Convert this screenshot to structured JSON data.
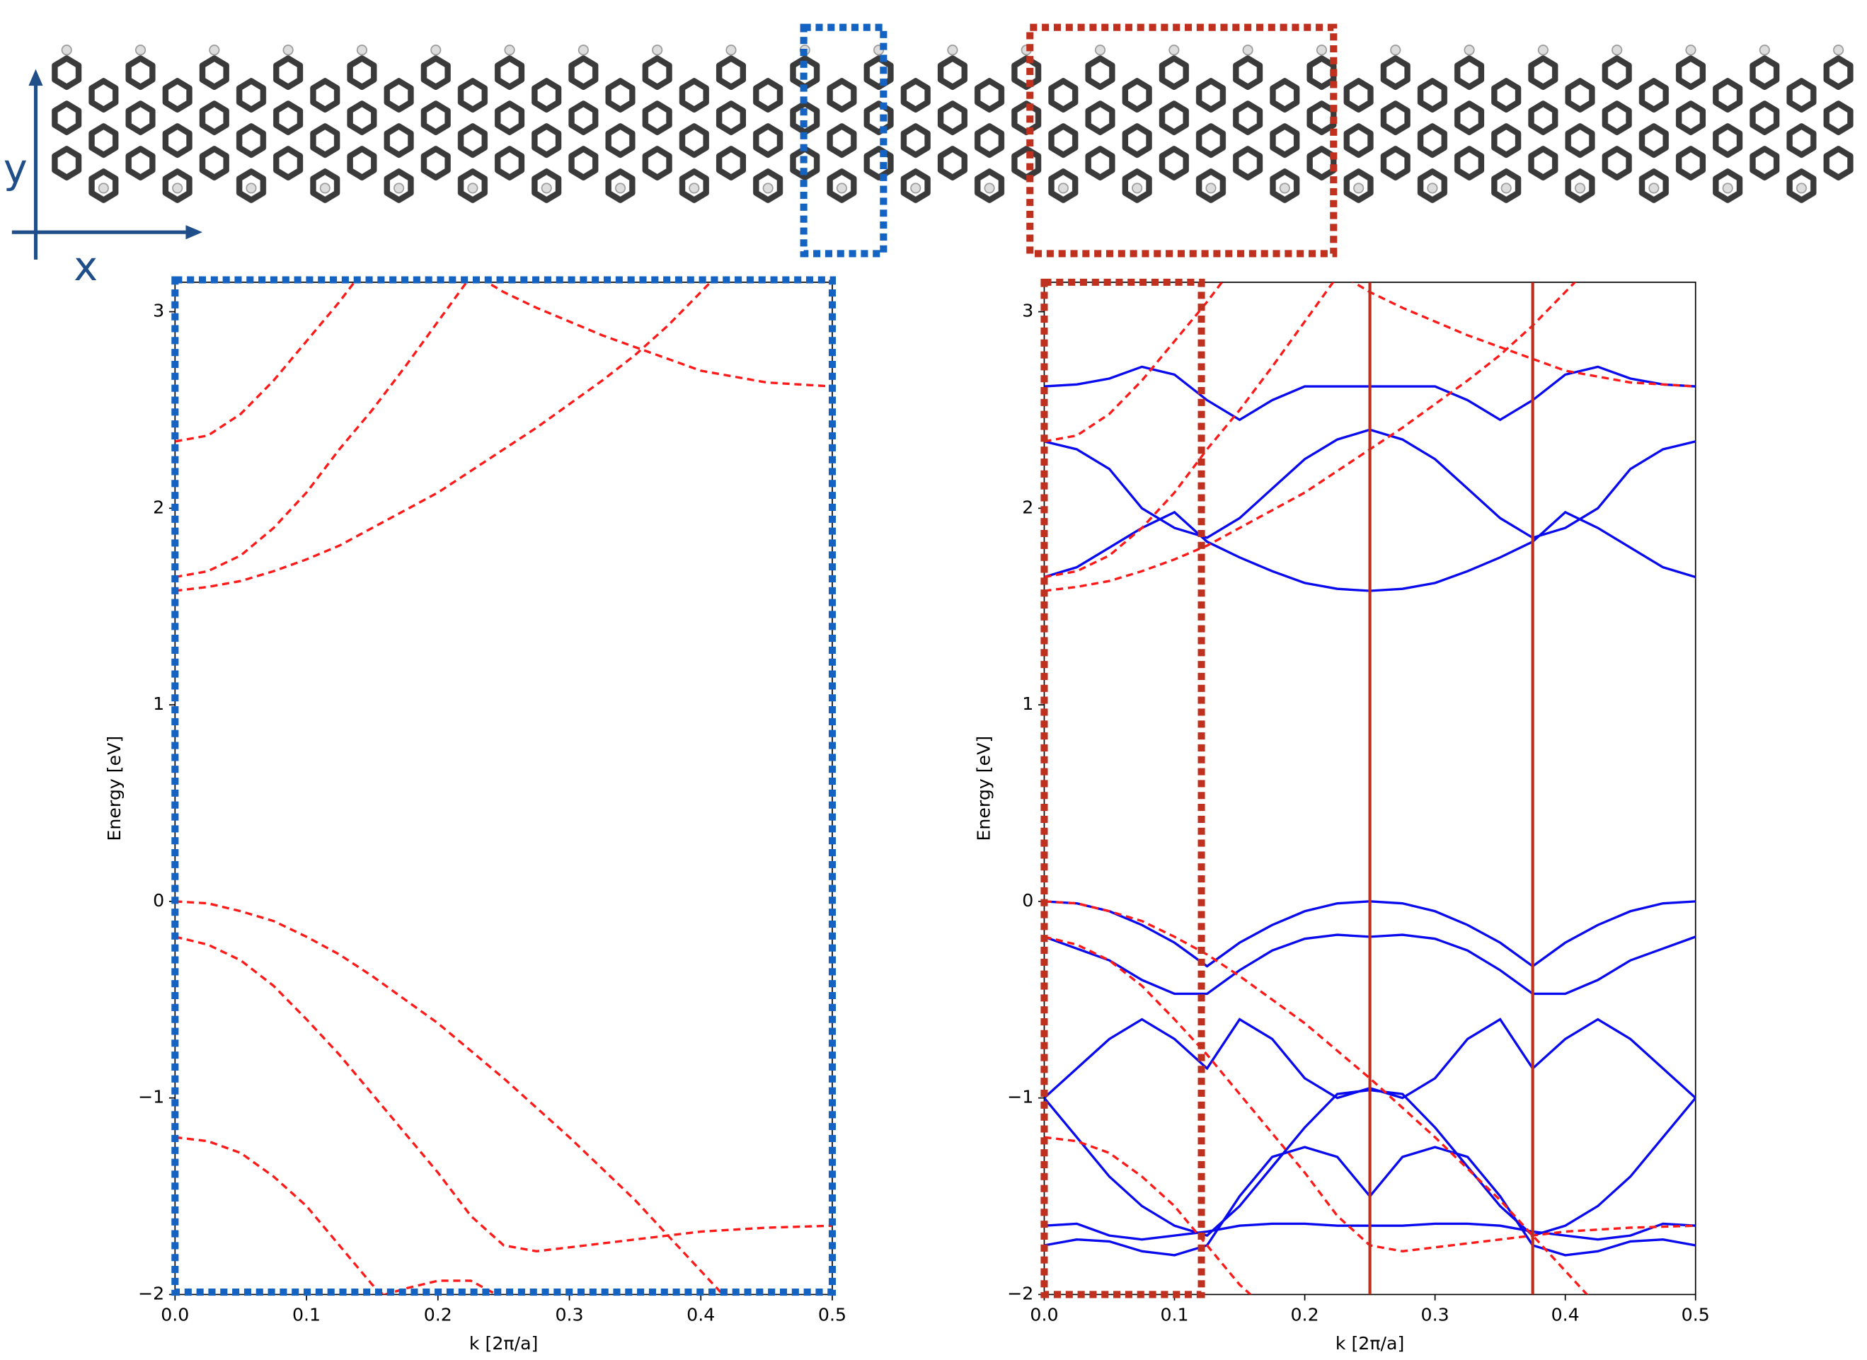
{
  "molecule": {
    "x_label": "x",
    "y_label": "y"
  },
  "chart_data": [
    {
      "type": "line",
      "xlabel": "k [2π/a]",
      "ylabel": "Energy [eV]",
      "xlim": [
        0,
        0.5
      ],
      "ylim": [
        -2,
        3.15
      ],
      "xticks": [
        {
          "value": 0,
          "label": "0.0"
        },
        0.1,
        0.2,
        0.3,
        0.4,
        0.5
      ],
      "yticks": [
        {
          "value": -2,
          "label": "−2"
        },
        {
          "value": -1,
          "label": "−1"
        },
        0,
        1,
        2,
        3
      ],
      "x": [
        0,
        0.025,
        0.05,
        0.075,
        0.1,
        0.125,
        0.15,
        0.175,
        0.2,
        0.225,
        0.25,
        0.275,
        0.3,
        0.325,
        0.35,
        0.375,
        0.4,
        0.425,
        0.45,
        0.475,
        0.5
      ],
      "series": [
        {
          "color": "#ff1a1a",
          "linestyle": "dashed",
          "values": [
            2.34,
            2.37,
            2.48,
            2.65,
            2.85,
            3.05,
            3.27,
            null,
            null,
            null,
            null,
            null,
            null,
            null,
            null,
            null,
            null,
            null,
            null,
            null,
            null
          ]
        },
        {
          "color": "#ff1a1a",
          "linestyle": "dashed",
          "values": [
            1.65,
            1.68,
            1.76,
            1.9,
            2.08,
            2.3,
            2.5,
            2.72,
            2.95,
            3.18,
            null,
            null,
            null,
            null,
            null,
            null,
            null,
            null,
            null,
            null,
            null
          ]
        },
        {
          "color": "#ff1a1a",
          "linestyle": "dashed",
          "values": [
            1.58,
            1.6,
            1.63,
            1.68,
            1.74,
            1.81,
            1.9,
            1.99,
            2.08,
            2.19,
            2.3,
            2.41,
            2.53,
            2.65,
            2.78,
            2.93,
            3.1,
            3.27,
            null,
            null,
            null
          ]
        },
        {
          "color": "#ff1a1a",
          "linestyle": "dashed",
          "values": [
            null,
            null,
            null,
            null,
            null,
            null,
            null,
            null,
            null,
            3.2,
            3.1,
            3.02,
            2.95,
            2.88,
            2.82,
            2.76,
            2.7,
            2.67,
            2.64,
            2.63,
            2.62
          ]
        },
        {
          "color": "#ff1a1a",
          "linestyle": "dashed",
          "values": [
            0,
            -0.01,
            -0.05,
            -0.1,
            -0.18,
            -0.27,
            -0.38,
            -0.5,
            -0.62,
            -0.76,
            -0.9,
            -1.05,
            -1.2,
            -1.36,
            -1.52,
            -1.7,
            -1.88,
            -2.06,
            null,
            null,
            null
          ]
        },
        {
          "color": "#ff1a1a",
          "linestyle": "dashed",
          "values": [
            -0.18,
            -0.22,
            -0.3,
            -0.43,
            -0.6,
            -0.78,
            -0.98,
            -1.18,
            -1.38,
            -1.6,
            -1.75,
            -1.78,
            -1.76,
            -1.74,
            -1.72,
            -1.7,
            -1.68,
            -1.67,
            -1.66,
            -1.655,
            -1.65
          ]
        },
        {
          "color": "#ff1a1a",
          "linestyle": "dashed",
          "values": [
            -1.2,
            -1.22,
            -1.28,
            -1.4,
            -1.55,
            -1.75,
            -1.95,
            -2.1,
            null,
            null,
            null,
            null,
            null,
            null,
            null,
            null,
            null,
            null,
            null,
            null,
            null
          ]
        },
        {
          "color": "#ff1a1a",
          "linestyle": "dashed",
          "values": [
            null,
            null,
            null,
            null,
            null,
            null,
            -2.02,
            -1.97,
            -1.93,
            -1.93,
            -2.02,
            null,
            null,
            null,
            null,
            null,
            null,
            null,
            null,
            null,
            null
          ]
        }
      ]
    },
    {
      "type": "line",
      "xlabel": "k [2π/a]",
      "ylabel": "Energy [eV]",
      "xlim": [
        0,
        0.5
      ],
      "ylim": [
        -2,
        3.15
      ],
      "xticks": [
        {
          "value": 0,
          "label": "0.0"
        },
        0.1,
        0.2,
        0.3,
        0.4,
        0.5
      ],
      "yticks": [
        {
          "value": -2,
          "label": "−2"
        },
        {
          "value": -1,
          "label": "−1"
        },
        0,
        1,
        2,
        3
      ],
      "vlines": [
        0.25,
        0.375
      ],
      "vline_color": "#c0301e",
      "x": [
        0,
        0.025,
        0.05,
        0.075,
        0.1,
        0.125,
        0.15,
        0.175,
        0.2,
        0.225,
        0.25,
        0.275,
        0.3,
        0.325,
        0.35,
        0.375,
        0.4,
        0.425,
        0.45,
        0.475,
        0.5
      ],
      "series": [
        {
          "color": "#0a0aee",
          "linestyle": "solid",
          "values": [
            0,
            -0.01,
            -0.05,
            -0.12,
            -0.21,
            -0.33,
            -0.21,
            -0.12,
            -0.05,
            -0.01,
            0,
            -0.01,
            -0.05,
            -0.12,
            -0.21,
            -0.33,
            -0.21,
            -0.12,
            -0.05,
            -0.01,
            0
          ]
        },
        {
          "color": "#0a0aee",
          "linestyle": "solid",
          "values": [
            -0.18,
            -0.24,
            -0.3,
            -0.4,
            -0.47,
            -0.47,
            -0.35,
            -0.25,
            -0.19,
            -0.17,
            -0.18,
            -0.17,
            -0.19,
            -0.25,
            -0.35,
            -0.47,
            -0.47,
            -0.4,
            -0.3,
            -0.24,
            -0.18
          ]
        },
        {
          "color": "#0a0aee",
          "linestyle": "solid",
          "values": [
            -1.0,
            -0.85,
            -0.7,
            -0.6,
            -0.7,
            -0.85,
            -0.6,
            -0.7,
            -0.9,
            -1.0,
            -0.95,
            -1.0,
            -0.9,
            -0.7,
            -0.6,
            -0.85,
            -0.7,
            -0.6,
            -0.7,
            -0.85,
            -1.0
          ]
        },
        {
          "color": "#0a0aee",
          "linestyle": "solid",
          "values": [
            -1.0,
            -1.2,
            -1.4,
            -1.55,
            -1.65,
            -1.7,
            -1.55,
            -1.35,
            -1.15,
            -0.98,
            -0.96,
            -0.98,
            -1.15,
            -1.35,
            -1.55,
            -1.7,
            -1.65,
            -1.55,
            -1.4,
            -1.2,
            -1.0
          ]
        },
        {
          "color": "#0a0aee",
          "linestyle": "solid",
          "values": [
            -1.65,
            -1.64,
            -1.7,
            -1.72,
            -1.7,
            -1.68,
            -1.65,
            -1.64,
            -1.64,
            -1.65,
            -1.65,
            -1.65,
            -1.64,
            -1.64,
            -1.65,
            -1.68,
            -1.7,
            -1.72,
            -1.7,
            -1.64,
            -1.65
          ]
        },
        {
          "color": "#0a0aee",
          "linestyle": "solid",
          "values": [
            -1.75,
            -1.72,
            -1.73,
            -1.78,
            -1.8,
            -1.75,
            -1.5,
            -1.3,
            -1.25,
            -1.3,
            -1.5,
            -1.3,
            -1.25,
            -1.3,
            -1.5,
            -1.75,
            -1.8,
            -1.78,
            -1.73,
            -1.72,
            -1.75
          ]
        },
        {
          "color": "#0a0aee",
          "linestyle": "solid",
          "values": [
            1.65,
            1.7,
            1.8,
            1.9,
            1.98,
            1.83,
            1.75,
            1.68,
            1.62,
            1.59,
            1.58,
            1.59,
            1.62,
            1.68,
            1.75,
            1.83,
            1.98,
            1.9,
            1.8,
            1.7,
            1.65
          ]
        },
        {
          "color": "#0a0aee",
          "linestyle": "solid",
          "values": [
            2.34,
            2.3,
            2.2,
            2.0,
            1.9,
            1.85,
            1.95,
            2.1,
            2.25,
            2.35,
            2.4,
            2.35,
            2.25,
            2.1,
            1.95,
            1.85,
            1.9,
            2.0,
            2.2,
            2.3,
            2.34
          ]
        },
        {
          "color": "#0a0aee",
          "linestyle": "solid",
          "values": [
            2.62,
            2.63,
            2.66,
            2.72,
            2.68,
            2.55,
            2.45,
            2.55,
            2.62,
            2.62,
            2.62,
            2.62,
            2.62,
            2.55,
            2.45,
            2.55,
            2.68,
            2.72,
            2.66,
            2.63,
            2.62
          ]
        },
        {
          "color": "#ff1a1a",
          "linestyle": "dashed",
          "values": [
            2.34,
            2.37,
            2.48,
            2.65,
            2.85,
            3.05,
            3.27,
            null,
            null,
            null,
            null,
            null,
            null,
            null,
            null,
            null,
            null,
            null,
            null,
            null,
            null
          ]
        },
        {
          "color": "#ff1a1a",
          "linestyle": "dashed",
          "values": [
            1.65,
            1.68,
            1.76,
            1.9,
            2.08,
            2.3,
            2.5,
            2.72,
            2.95,
            3.18,
            null,
            null,
            null,
            null,
            null,
            null,
            null,
            null,
            null,
            null,
            null
          ]
        },
        {
          "color": "#ff1a1a",
          "linestyle": "dashed",
          "values": [
            1.58,
            1.6,
            1.63,
            1.68,
            1.74,
            1.81,
            1.9,
            1.99,
            2.08,
            2.19,
            2.3,
            2.41,
            2.53,
            2.65,
            2.78,
            2.93,
            3.1,
            3.27,
            null,
            null,
            null
          ]
        },
        {
          "color": "#ff1a1a",
          "linestyle": "dashed",
          "values": [
            null,
            null,
            null,
            null,
            null,
            null,
            null,
            null,
            null,
            3.2,
            3.1,
            3.02,
            2.95,
            2.88,
            2.82,
            2.76,
            2.7,
            2.67,
            2.64,
            2.63,
            2.62
          ]
        },
        {
          "color": "#ff1a1a",
          "linestyle": "dashed",
          "values": [
            0,
            -0.01,
            -0.05,
            -0.1,
            -0.18,
            -0.27,
            -0.38,
            -0.5,
            -0.62,
            -0.76,
            -0.9,
            -1.05,
            -1.2,
            -1.36,
            -1.52,
            -1.7,
            -1.88,
            -2.06,
            null,
            null,
            null
          ]
        },
        {
          "color": "#ff1a1a",
          "linestyle": "dashed",
          "values": [
            -0.18,
            -0.22,
            -0.3,
            -0.43,
            -0.6,
            -0.78,
            -0.98,
            -1.18,
            -1.38,
            -1.6,
            -1.75,
            -1.78,
            -1.76,
            -1.74,
            -1.72,
            -1.7,
            -1.68,
            -1.67,
            -1.66,
            -1.655,
            -1.65
          ]
        },
        {
          "color": "#ff1a1a",
          "linestyle": "dashed",
          "values": [
            -1.2,
            -1.22,
            -1.28,
            -1.4,
            -1.55,
            -1.75,
            -1.95,
            -2.1,
            null,
            null,
            null,
            null,
            null,
            null,
            null,
            null,
            null,
            null,
            null,
            null,
            null
          ]
        }
      ]
    }
  ]
}
